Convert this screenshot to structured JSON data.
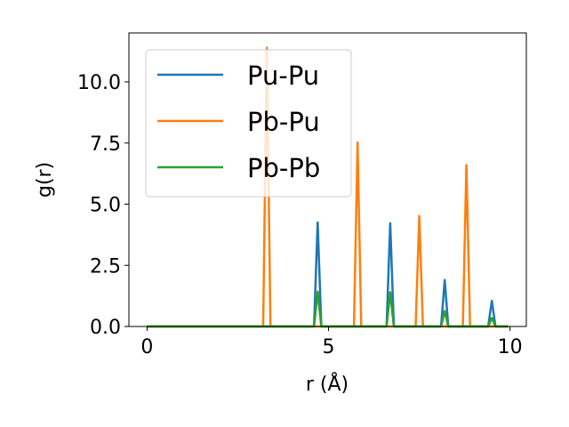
{
  "chart_data": {
    "type": "line",
    "title": "",
    "xlabel": "r (Å)",
    "ylabel": "g(r)",
    "xlim": [
      -0.5,
      10.45
    ],
    "ylim": [
      0,
      12
    ],
    "xticks": [
      0,
      5,
      10
    ],
    "yticks": [
      0.0,
      2.5,
      5.0,
      7.5,
      10.0
    ],
    "xtick_labels": [
      "0",
      "5",
      "10"
    ],
    "ytick_labels": [
      "0.0",
      "2.5",
      "5.0",
      "7.5",
      "10.0"
    ],
    "grid": false,
    "legend_position": "top-left",
    "series": [
      {
        "name": "Pu-Pu",
        "color": "#1f77b4",
        "x": [
          0,
          4.6,
          4.7,
          4.8,
          6.6,
          6.7,
          6.8,
          8.1,
          8.2,
          8.3,
          9.4,
          9.5,
          9.6,
          9.95
        ],
        "y": [
          0,
          0,
          4.25,
          0,
          0,
          4.22,
          0,
          0,
          1.9,
          0,
          0,
          1.05,
          0,
          0
        ]
      },
      {
        "name": "Pb-Pu",
        "color": "#ff7f0e",
        "x": [
          0,
          3.2,
          3.3,
          3.4,
          5.7,
          5.8,
          5.9,
          7.4,
          7.5,
          7.6,
          8.7,
          8.8,
          8.9,
          9.95
        ],
        "y": [
          0,
          0,
          11.4,
          0,
          0,
          7.52,
          0,
          0,
          4.52,
          0,
          0,
          6.6,
          0,
          0
        ]
      },
      {
        "name": "Pb-Pb",
        "color": "#2ca02c",
        "x": [
          0,
          4.6,
          4.7,
          4.8,
          6.6,
          6.7,
          6.8,
          8.1,
          8.2,
          8.3,
          9.4,
          9.5,
          9.6,
          9.95
        ],
        "y": [
          0,
          0,
          1.42,
          0,
          0,
          1.4,
          0,
          0,
          0.63,
          0,
          0,
          0.35,
          0,
          0
        ]
      }
    ]
  }
}
